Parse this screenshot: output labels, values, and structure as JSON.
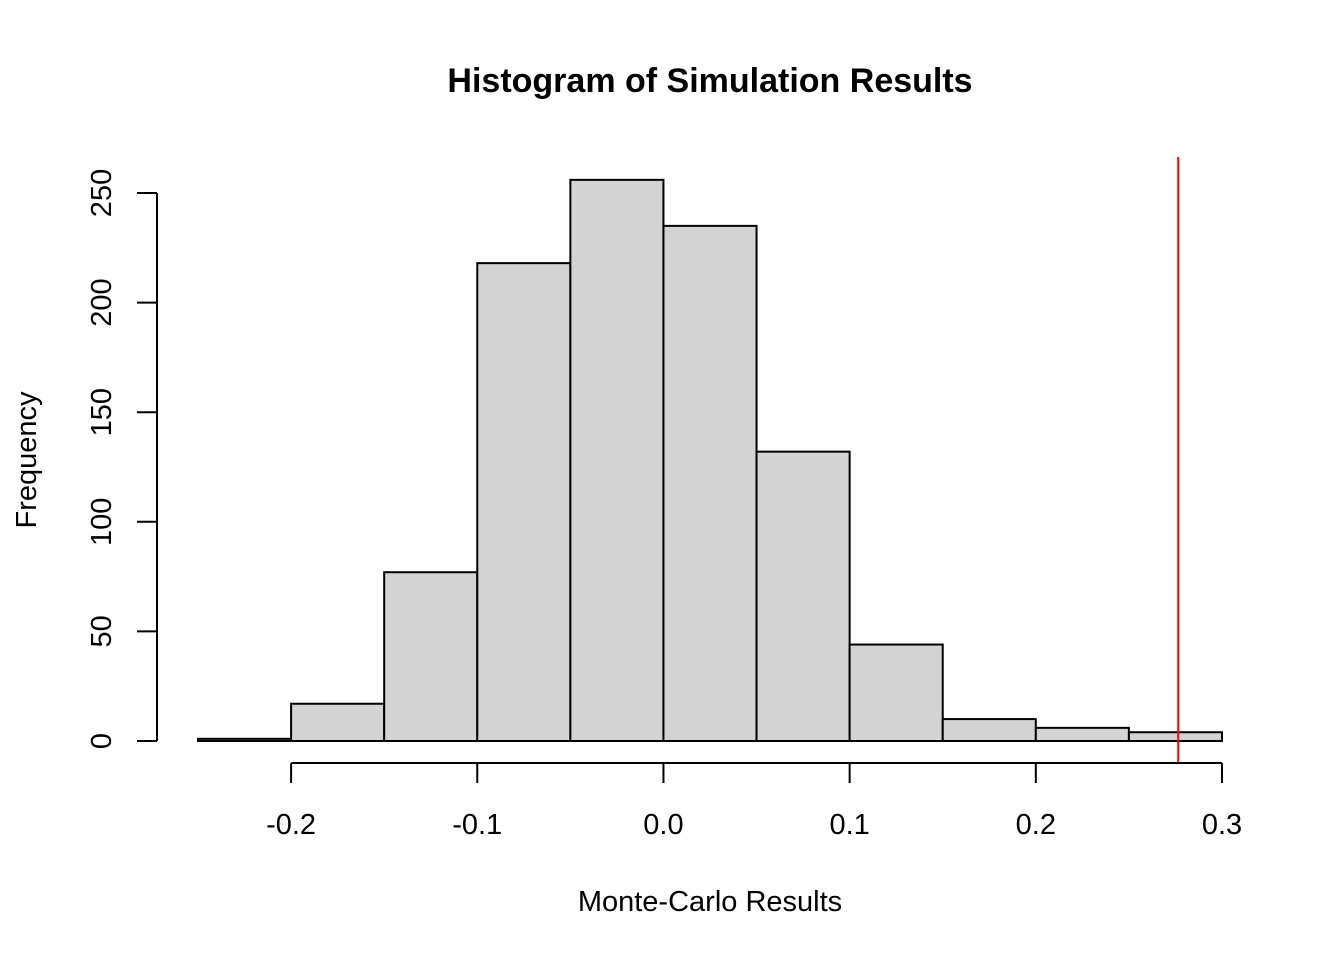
{
  "chart_data": {
    "type": "histogram",
    "title": "Histogram of Simulation Results",
    "xlabel": "Monte-Carlo Results",
    "ylabel": "Frequency",
    "bins": [
      {
        "start": -0.25,
        "end": -0.2,
        "count": 1
      },
      {
        "start": -0.2,
        "end": -0.15,
        "count": 17
      },
      {
        "start": -0.15,
        "end": -0.1,
        "count": 77
      },
      {
        "start": -0.1,
        "end": -0.05,
        "count": 218
      },
      {
        "start": -0.05,
        "end": 0.0,
        "count": 256
      },
      {
        "start": 0.0,
        "end": 0.05,
        "count": 235
      },
      {
        "start": 0.05,
        "end": 0.1,
        "count": 132
      },
      {
        "start": 0.1,
        "end": 0.15,
        "count": 44
      },
      {
        "start": 0.15,
        "end": 0.2,
        "count": 10
      },
      {
        "start": 0.2,
        "end": 0.25,
        "count": 6
      },
      {
        "start": 0.25,
        "end": 0.3,
        "count": 4
      }
    ],
    "xticks": [
      {
        "value": -0.2,
        "label": "-0.2"
      },
      {
        "value": -0.1,
        "label": "-0.1"
      },
      {
        "value": 0.0,
        "label": "0.0"
      },
      {
        "value": 0.1,
        "label": "0.1"
      },
      {
        "value": 0.2,
        "label": "0.2"
      },
      {
        "value": 0.3,
        "label": "0.3"
      }
    ],
    "yticks": [
      {
        "value": 0,
        "label": "0"
      },
      {
        "value": 50,
        "label": "50"
      },
      {
        "value": 100,
        "label": "100"
      },
      {
        "value": 150,
        "label": "150"
      },
      {
        "value": 200,
        "label": "200"
      },
      {
        "value": 250,
        "label": "250"
      }
    ],
    "xlim": [
      -0.25,
      0.3
    ],
    "ylim": [
      0,
      250
    ],
    "reference_line": {
      "x": 0.2765,
      "color": "#ff0000"
    },
    "bar_fill": "#d3d3d3",
    "bar_stroke": "#000000",
    "grid": false
  }
}
